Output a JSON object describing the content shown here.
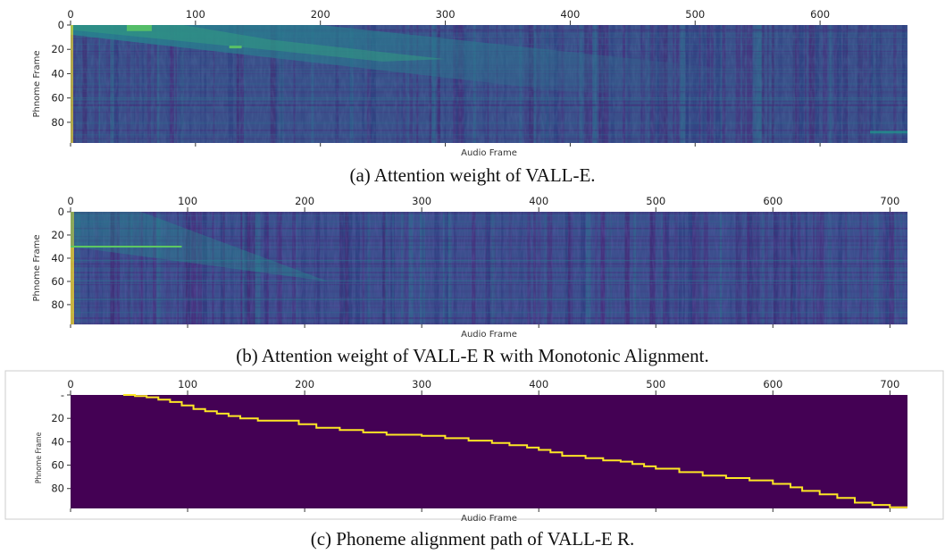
{
  "captions": {
    "a": "(a) Attention weight of VALL-E.",
    "b": "(b) Attention weight of VALL-E R with Monotonic Alignment.",
    "c": "(c) Phoneme alignment path of VALL-E R."
  },
  "colors": {
    "viridis_dark": "#440154",
    "viridis_blue": "#3b528b",
    "viridis_teal": "#21918c",
    "viridis_green": "#5ec962",
    "viridis_yellow": "#fde725",
    "frame_border": "#cccccc"
  },
  "chart_data": [
    {
      "type": "heatmap",
      "title": "",
      "xlabel": "Audio Frame",
      "ylabel": "Phnome Frame",
      "x_ticks": [
        0,
        100,
        200,
        300,
        400,
        500,
        600
      ],
      "x_tick_labels": [
        "0",
        "100",
        "200",
        "300",
        "400",
        "500",
        "600"
      ],
      "y_ticks": [
        0,
        20,
        40,
        60,
        80
      ],
      "y_tick_labels": [
        "0",
        "20",
        "40",
        "60",
        "80"
      ],
      "xlim": [
        0,
        670
      ],
      "ylim": [
        97,
        0
      ],
      "x_axis_position": "top",
      "colormap": "viridis",
      "pattern": "diffuse diagonal attention band from (0,0) to roughly (670,60), strong bright region near x 40-60 y 0-5"
    },
    {
      "type": "heatmap",
      "title": "",
      "xlabel": "Audio Frame",
      "ylabel": "Phnome Frame",
      "x_ticks": [
        0,
        100,
        200,
        300,
        400,
        500,
        600,
        700
      ],
      "x_tick_labels": [
        "0",
        "100",
        "200",
        "300",
        "400",
        "500",
        "600",
        "700"
      ],
      "y_ticks": [
        0,
        20,
        40,
        60,
        80
      ],
      "y_tick_labels": [
        "0",
        "20",
        "40",
        "60",
        "80"
      ],
      "xlim": [
        0,
        715
      ],
      "ylim": [
        97,
        0
      ],
      "x_axis_position": "top",
      "colormap": "viridis",
      "pattern": "mostly uniform low attention with vertical striping, brighter near left edge, bright horizontal line at y 30 for x 0-95"
    },
    {
      "type": "heatmap",
      "title": "",
      "xlabel": "Audio Frame",
      "ylabel": "Phnome Frame",
      "x_ticks": [
        0,
        100,
        200,
        300,
        400,
        500,
        600,
        700
      ],
      "x_tick_labels": [
        "0",
        "100",
        "200",
        "300",
        "400",
        "500",
        "600",
        "700"
      ],
      "y_ticks": [
        0,
        20,
        40,
        60,
        80
      ],
      "y_tick_labels": [
        "-",
        "20",
        "40",
        "60",
        "80"
      ],
      "xlim": [
        0,
        715
      ],
      "ylim": [
        97,
        0
      ],
      "x_axis_position": "top",
      "colormap": "viridis",
      "alignment_path": [
        [
          45,
          0
        ],
        [
          55,
          1
        ],
        [
          65,
          2
        ],
        [
          75,
          4
        ],
        [
          85,
          6
        ],
        [
          95,
          9
        ],
        [
          105,
          12
        ],
        [
          115,
          14
        ],
        [
          125,
          16
        ],
        [
          135,
          18
        ],
        [
          145,
          20
        ],
        [
          160,
          22
        ],
        [
          185,
          22
        ],
        [
          195,
          25
        ],
        [
          210,
          28
        ],
        [
          230,
          30
        ],
        [
          250,
          32
        ],
        [
          270,
          34
        ],
        [
          300,
          35
        ],
        [
          320,
          37
        ],
        [
          340,
          39
        ],
        [
          360,
          41
        ],
        [
          375,
          43
        ],
        [
          390,
          45
        ],
        [
          400,
          47
        ],
        [
          410,
          49
        ],
        [
          420,
          52
        ],
        [
          440,
          54
        ],
        [
          455,
          56
        ],
        [
          470,
          57
        ],
        [
          480,
          59
        ],
        [
          490,
          61
        ],
        [
          500,
          63
        ],
        [
          520,
          66
        ],
        [
          540,
          69
        ],
        [
          560,
          71
        ],
        [
          580,
          73
        ],
        [
          600,
          76
        ],
        [
          615,
          79
        ],
        [
          625,
          82
        ],
        [
          640,
          85
        ],
        [
          655,
          88
        ],
        [
          670,
          92
        ],
        [
          685,
          94
        ],
        [
          700,
          96
        ],
        [
          715,
          96
        ]
      ]
    }
  ]
}
